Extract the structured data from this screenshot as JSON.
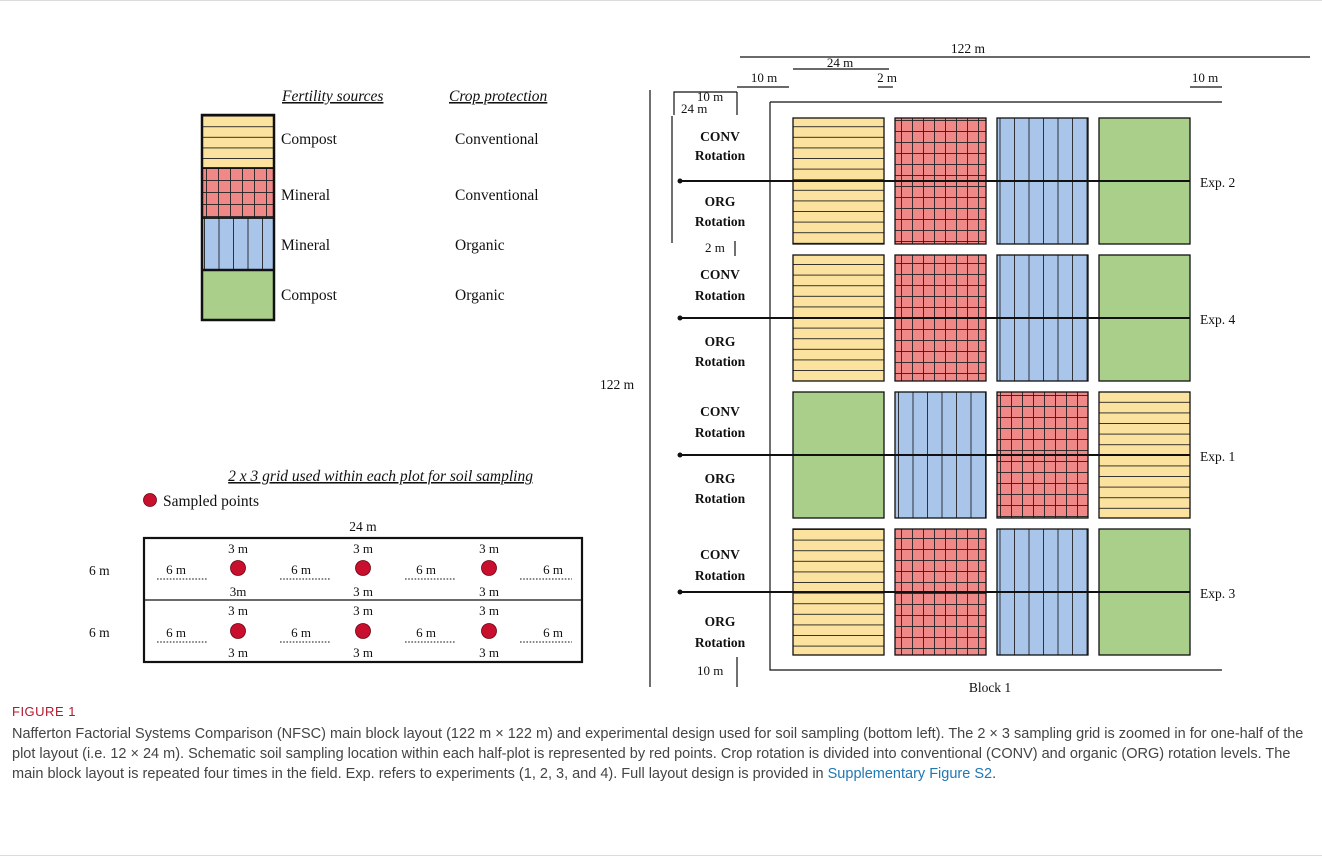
{
  "legend": {
    "header_fertility": "Fertility sources",
    "header_protection": "Crop protection",
    "rows": [
      {
        "fertility": "Compost",
        "protection": "Conventional"
      },
      {
        "fertility": "Mineral",
        "protection": "Conventional"
      },
      {
        "fertility": "Mineral",
        "protection": "Organic"
      },
      {
        "fertility": "Compost",
        "protection": "Organic"
      }
    ]
  },
  "sampling_grid": {
    "title": "2 x 3 grid used within each plot for soil sampling",
    "legend_label": "Sampled points",
    "width_label": "24 m",
    "row_height_label": "6 m",
    "gap_label": "6 m",
    "offset_label": "3 m",
    "offset_label_compact": "3m"
  },
  "block": {
    "label": "Block 1",
    "dimensions": {
      "total_width": "122 m",
      "total_height": "122 m",
      "plot_width": "24 m",
      "plot_height": "24 m",
      "margin": "10 m",
      "gap": "2 m"
    },
    "rotation": {
      "conv": "CONV",
      "org": "ORG",
      "suffix": "Rotation"
    },
    "rows": [
      {
        "exp": "Exp. 2"
      },
      {
        "exp": "Exp. 4"
      },
      {
        "exp": "Exp. 1"
      },
      {
        "exp": "Exp. 3"
      }
    ],
    "colors": {
      "compost_conventional": "#fbe29f",
      "mineral_conventional": "#f08888",
      "mineral_organic": "#a9c5ea",
      "compost_organic": "#a9cf8b",
      "sample_point": "#c8102e"
    }
  },
  "caption": {
    "label": "FIGURE 1",
    "text": "Nafferton Factorial Systems Comparison (NFSC) main block layout (122 m × 122 m) and experimental design used for soil sampling (bottom left). The 2 × 3 sampling grid is zoomed in for one-half of the plot layout (i.e. 12 × 24 m). Schematic soil sampling location within each half-plot is represented by red points. Crop rotation is divided into conventional (CONV) and organic (ORG) rotation levels. The main block layout is repeated four times in the field. Exp. refers to experiments (1, 2, 3, and 4). Full layout design is provided in ",
    "link": "Supplementary Figure S2",
    "end": "."
  }
}
